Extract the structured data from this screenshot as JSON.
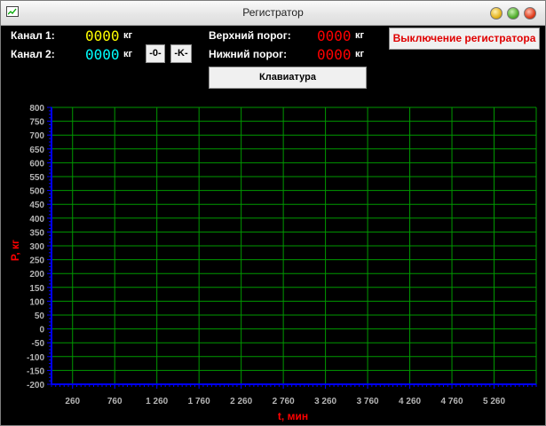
{
  "window": {
    "title": "Регистратор"
  },
  "channels": [
    {
      "label": "Канал 1:",
      "value": "0000",
      "unit": "кг",
      "color": "#ffff00"
    },
    {
      "label": "Канал 2:",
      "value": "0000",
      "unit": "кг",
      "color": "#00ffff"
    }
  ],
  "buttons": {
    "zero": "-0-",
    "k": "-K-",
    "keyboard": "Клавиатура",
    "shutdown": "Выключение регистратора"
  },
  "thresholds": {
    "upper": {
      "label": "Верхний порог:",
      "value": "0000",
      "unit": "кг"
    },
    "lower": {
      "label": "Нижний порог:",
      "value": "0000",
      "unit": "кг"
    }
  },
  "chart_data": {
    "type": "line",
    "xlabel": "t, мин",
    "ylabel": "P, кг",
    "ylim": [
      -200,
      800
    ],
    "yticks": [
      800,
      750,
      700,
      650,
      600,
      550,
      500,
      450,
      400,
      350,
      300,
      250,
      200,
      150,
      100,
      50,
      0,
      -50,
      -100,
      -150,
      -200
    ],
    "xlim": [
      10,
      5760
    ],
    "xticks": [
      260,
      760,
      1260,
      1760,
      2260,
      2760,
      3260,
      3760,
      4260,
      4760,
      5260
    ],
    "xtick_labels": [
      "260",
      "760",
      "1 260",
      "1 760",
      "2 260",
      "2 760",
      "3 260",
      "3 760",
      "4 260",
      "4 760",
      "5 260"
    ],
    "grid": true,
    "series": [],
    "colors": {
      "grid": "#009900",
      "axis": "#0000ff",
      "tick_label": "#b4b4b4",
      "axis_label": "#ff0000"
    }
  }
}
